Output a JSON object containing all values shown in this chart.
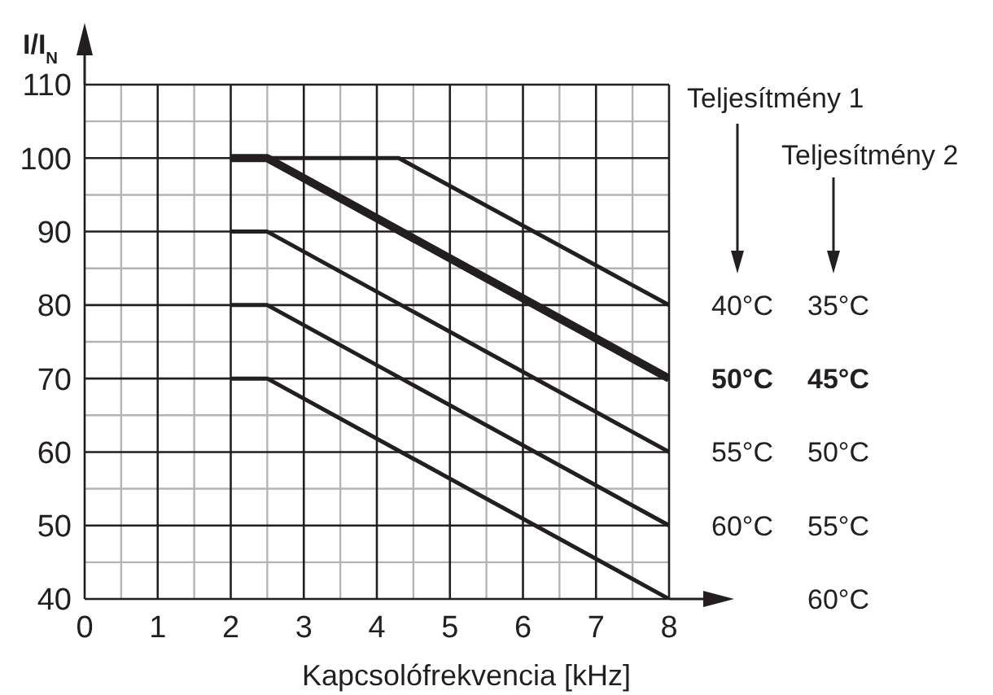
{
  "chart_data": {
    "type": "line",
    "xlabel": "Kapcsolófrekvencia [kHz]",
    "ylabel": "I/I$_{N}$",
    "series": [
      {
        "x": [
          2,
          4.3,
          8
        ],
        "values": [
          100,
          100,
          80
        ],
        "color": "#231f20"
      },
      {
        "x": [
          2,
          2.5,
          8
        ],
        "values": [
          100,
          100,
          70
        ],
        "color": "#231f20"
      },
      {
        "x": [
          2,
          2.5,
          8
        ],
        "values": [
          90,
          90,
          60
        ],
        "color": "#231f20"
      },
      {
        "x": [
          2,
          2.5,
          8
        ],
        "values": [
          80,
          80,
          50
        ],
        "color": "#231f20"
      },
      {
        "x": [
          2,
          2.5,
          8
        ],
        "values": [
          70,
          70,
          40
        ],
        "color": "#231f20"
      }
    ],
    "xlim": [
      0,
      8
    ],
    "xticks": [
      0,
      1,
      2,
      3,
      4,
      5,
      6,
      7,
      8
    ],
    "ylim": [
      40,
      110
    ],
    "yticks": [
      40,
      50,
      60,
      70,
      80,
      90,
      100,
      110
    ],
    "grid": true,
    "marker": "none",
    "line_style": "solid",
    "annotations": [
      "Teljesítmény 1",
      "Teljesítmény 2",
      "40°C",
      "50°C",
      "55°C",
      "60°C",
      "35°C",
      "45°C",
      "50°C",
      "55°C",
      "60°C"
    ]
  }
}
